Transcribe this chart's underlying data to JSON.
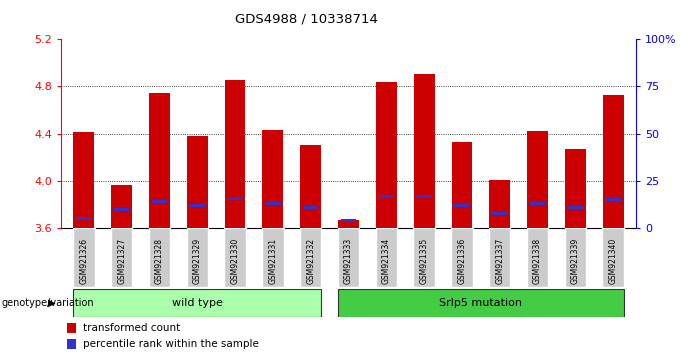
{
  "title": "GDS4988 / 10338714",
  "samples": [
    "GSM921326",
    "GSM921327",
    "GSM921328",
    "GSM921329",
    "GSM921330",
    "GSM921331",
    "GSM921332",
    "GSM921333",
    "GSM921334",
    "GSM921335",
    "GSM921336",
    "GSM921337",
    "GSM921338",
    "GSM921339",
    "GSM921340"
  ],
  "transformed_count": [
    4.41,
    3.97,
    4.74,
    4.38,
    4.85,
    4.43,
    4.3,
    3.67,
    4.84,
    4.9,
    4.33,
    4.01,
    4.42,
    4.27,
    4.73
  ],
  "percentile_rank": [
    5,
    10,
    14,
    12,
    16,
    13,
    11,
    4,
    17,
    17,
    12,
    8,
    13,
    11,
    15
  ],
  "ymin": 3.6,
  "ymax": 5.2,
  "yticks_left": [
    3.6,
    4.0,
    4.4,
    4.8,
    5.2
  ],
  "yticks_right_vals": [
    0,
    25,
    50,
    75,
    100
  ],
  "yticks_right_labels": [
    "0",
    "25",
    "50",
    "75",
    "100%"
  ],
  "bar_color_red": "#cc0000",
  "bar_color_blue": "#3333cc",
  "groups": [
    {
      "label": "wild type",
      "start": 0,
      "end": 7,
      "color": "#aaffaa"
    },
    {
      "label": "Srlp5 mutation",
      "start": 7,
      "end": 15,
      "color": "#44cc44"
    }
  ],
  "legend_red": "transformed count",
  "legend_blue": "percentile rank within the sample",
  "bar_width": 0.55
}
